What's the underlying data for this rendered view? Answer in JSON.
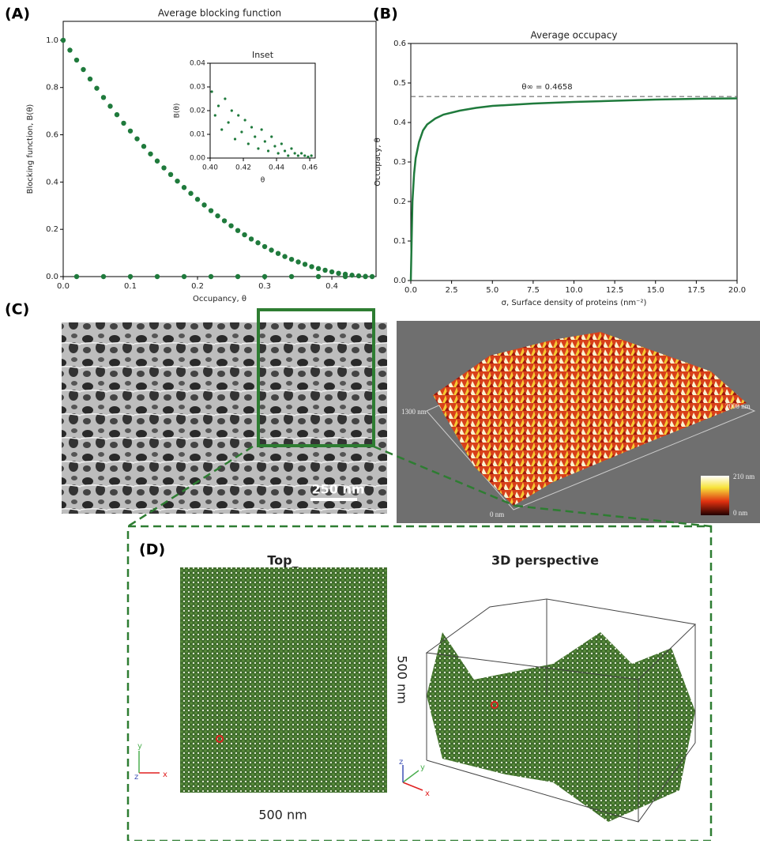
{
  "panels": {
    "a": "(A)",
    "b": "(B)",
    "c": "(C)",
    "d": "(D)"
  },
  "chart_data": [
    {
      "type": "scatter",
      "title": "Average blocking function",
      "x_label": "Occupancy, θ",
      "y_label": "Blocking function, B(θ)",
      "xlim": [
        0,
        0.4658
      ],
      "ylim": [
        0,
        1.08
      ],
      "xticks": [
        {
          "value": 0,
          "label": "0.0"
        },
        0.1,
        0.2,
        0.3,
        0.4
      ],
      "yticks": [
        {
          "value": 0,
          "label": "0.0"
        },
        0.2,
        0.4,
        0.6,
        0.8,
        {
          "value": 1,
          "label": "1.0"
        }
      ],
      "series": [
        {
          "color": "#1f7a3c",
          "x": [
            0.0,
            0.01,
            0.02,
            0.03,
            0.04,
            0.05,
            0.06,
            0.07,
            0.08,
            0.09,
            0.1,
            0.11,
            0.12,
            0.13,
            0.14,
            0.15,
            0.16,
            0.17,
            0.18,
            0.19,
            0.2,
            0.21,
            0.22,
            0.23,
            0.24,
            0.25,
            0.26,
            0.27,
            0.28,
            0.29,
            0.3,
            0.31,
            0.32,
            0.33,
            0.34,
            0.35,
            0.36,
            0.37,
            0.38,
            0.39,
            0.4,
            0.41,
            0.42,
            0.43,
            0.44,
            0.45,
            0.46
          ],
          "values": [
            1.0,
            0.958,
            0.916,
            0.876,
            0.836,
            0.797,
            0.758,
            0.721,
            0.685,
            0.649,
            0.616,
            0.583,
            0.551,
            0.519,
            0.489,
            0.46,
            0.432,
            0.404,
            0.377,
            0.352,
            0.327,
            0.303,
            0.279,
            0.257,
            0.236,
            0.215,
            0.195,
            0.177,
            0.159,
            0.143,
            0.127,
            0.112,
            0.098,
            0.085,
            0.073,
            0.062,
            0.052,
            0.042,
            0.034,
            0.027,
            0.02,
            0.014,
            0.01,
            0.006,
            0.003,
            0.001,
            0.0
          ]
        },
        {
          "color": "#1f7a3c",
          "x": [
            0.02,
            0.06,
            0.1,
            0.14,
            0.18,
            0.22,
            0.26,
            0.3,
            0.34,
            0.38,
            0.42,
            0.45
          ],
          "values": [
            0,
            0,
            0,
            0,
            0,
            0,
            0,
            0,
            0,
            0,
            0,
            0
          ]
        }
      ]
    },
    {
      "type": "scatter",
      "title": "Inset",
      "x_label": "θ",
      "y_label": "B(θ)",
      "xlim": [
        0.4,
        0.4633
      ],
      "ylim": [
        0,
        0.04
      ],
      "xticks": [
        {
          "value": 0.4,
          "label": "0.40"
        },
        0.42,
        0.44,
        0.46
      ],
      "yticks": [
        {
          "value": 0,
          "label": "0.00"
        },
        0.01,
        0.02,
        0.03,
        {
          "value": 0.04,
          "label": "0.04"
        }
      ],
      "series": [
        {
          "color": "#1f7a3c",
          "x": [
            0.401,
            0.403,
            0.405,
            0.407,
            0.409,
            0.411,
            0.413,
            0.415,
            0.417,
            0.419,
            0.421,
            0.423,
            0.425,
            0.427,
            0.429,
            0.431,
            0.433,
            0.435,
            0.437,
            0.439,
            0.441,
            0.443,
            0.445,
            0.447,
            0.449,
            0.451,
            0.453,
            0.455,
            0.457,
            0.459,
            0.461
          ],
          "values": [
            0.028,
            0.018,
            0.022,
            0.012,
            0.025,
            0.015,
            0.02,
            0.008,
            0.018,
            0.011,
            0.016,
            0.006,
            0.013,
            0.009,
            0.004,
            0.012,
            0.007,
            0.003,
            0.009,
            0.005,
            0.002,
            0.006,
            0.003,
            0.001,
            0.004,
            0.002,
            0.001,
            0.002,
            0.001,
            0.0005,
            0.001
          ]
        }
      ]
    },
    {
      "type": "line",
      "title": "Average occupacy",
      "x_label": "σ, Surface density of proteins (nm⁻²)",
      "y_label": "Occupacy, θ",
      "xlim": [
        0,
        20
      ],
      "ylim": [
        0,
        0.6
      ],
      "xticks": [
        {
          "value": 0,
          "label": "0.0"
        },
        2.5,
        {
          "value": 5,
          "label": "5.0"
        },
        7.5,
        {
          "value": 10,
          "label": "10.0"
        },
        12.5,
        {
          "value": 15,
          "label": "15.0"
        },
        17.5,
        {
          "value": 20,
          "label": "20.0"
        }
      ],
      "yticks": [
        {
          "value": 0,
          "label": "0.0"
        },
        0.1,
        0.2,
        0.3,
        0.4,
        0.5,
        0.6
      ],
      "reference": {
        "value": 0.4658,
        "label": "θ∞ = 0.4658"
      },
      "series": [
        {
          "color": "#1f7a3c",
          "x": [
            0,
            0.05,
            0.1,
            0.2,
            0.3,
            0.5,
            0.75,
            1,
            1.5,
            2,
            3,
            4,
            5,
            7.5,
            10,
            12.5,
            15,
            17.5,
            20
          ],
          "values": [
            0,
            0.1,
            0.2,
            0.27,
            0.31,
            0.35,
            0.38,
            0.395,
            0.41,
            0.42,
            0.43,
            0.437,
            0.442,
            0.448,
            0.452,
            0.455,
            0.458,
            0.46,
            0.461
          ]
        }
      ]
    }
  ],
  "images": {
    "scale_bar": "250 nm",
    "afm_y": "1300 nm",
    "afm_x": "2000 nm",
    "afm_max": "210 nm",
    "afm_zero": "0 nm",
    "afm_min": "0 nm",
    "top_title": "Top_",
    "persp_title": "3D perspective",
    "width_label": "500 nm",
    "height_label": "500 nm",
    "axes_left": [
      "y",
      "z",
      "x"
    ],
    "axes_right": [
      "z",
      "y",
      "x"
    ]
  }
}
